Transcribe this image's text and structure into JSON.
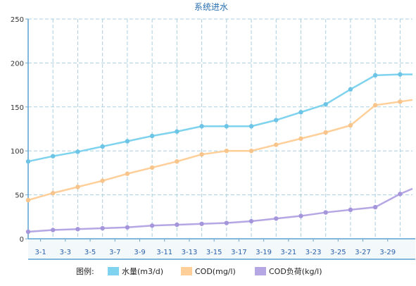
{
  "chart_data": {
    "type": "line",
    "title": "系统进水",
    "xlabel": "",
    "ylabel": "",
    "ylim": [
      0,
      250
    ],
    "yticks": [
      0,
      50,
      100,
      150,
      200,
      250
    ],
    "x_day_range": [
      0,
      31
    ],
    "xtick_labels": [
      "3-1",
      "3-3",
      "3-5",
      "3-7",
      "3-9",
      "3-11",
      "3-13",
      "3-15",
      "3-17",
      "3-19",
      "3-21",
      "3-23",
      "3-25",
      "3-27",
      "3-29"
    ],
    "xtick_days": [
      1,
      3,
      5,
      7,
      9,
      11,
      13,
      15,
      17,
      19,
      21,
      23,
      25,
      27,
      29
    ],
    "x": [
      0,
      2,
      4,
      6,
      8,
      10,
      12,
      14,
      16,
      18,
      20,
      22,
      24,
      26,
      28,
      30,
      31
    ],
    "grid": true,
    "legend_position": "bottom",
    "legend_prefix": "图例:",
    "series": [
      {
        "name": "水量(m3/d)",
        "color": "#7fd3ef",
        "marker_color": "#6cc4e6",
        "values": [
          88,
          94,
          99,
          105,
          111,
          117,
          122,
          128,
          128,
          128,
          135,
          144,
          153,
          170,
          186,
          187,
          187
        ]
      },
      {
        "name": "COD(mg/l)",
        "color": "#ffcf9a",
        "marker_color": "#f7c48c",
        "values": [
          44,
          52,
          59,
          66,
          74,
          81,
          88,
          96,
          100,
          100,
          107,
          114,
          121,
          129,
          152,
          156,
          158
        ]
      },
      {
        "name": "COD负荷(kg/l)",
        "color": "#b5a6e4",
        "marker_color": "#a596dc",
        "values": [
          8,
          10,
          11,
          12,
          13,
          15,
          16,
          17,
          18,
          20,
          23,
          26,
          30,
          33,
          36,
          51,
          57
        ]
      }
    ]
  }
}
